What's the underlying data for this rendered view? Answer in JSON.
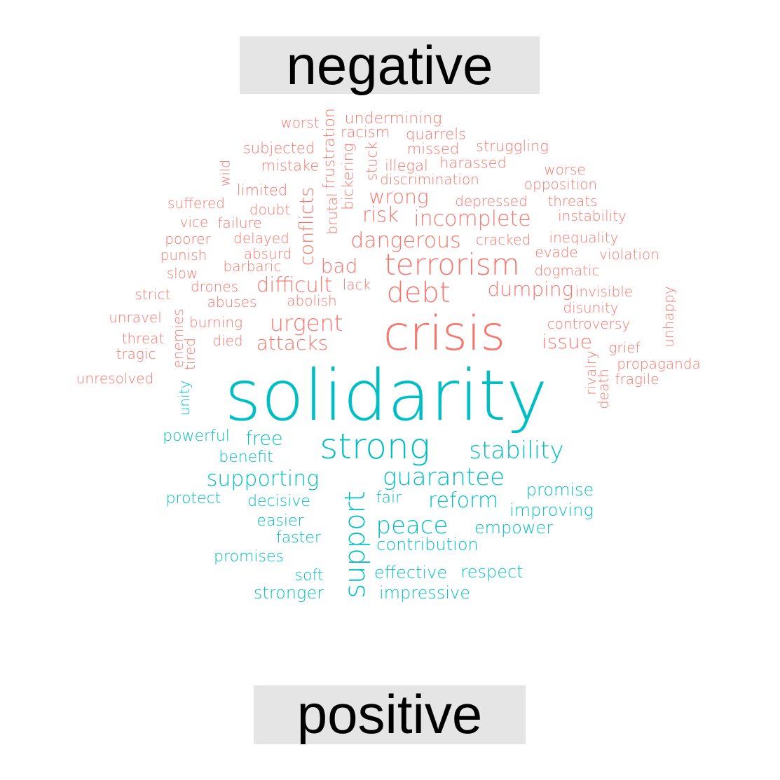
{
  "labels": {
    "negative": "negative",
    "positive": "positive"
  },
  "colors": {
    "negative": "#F8766D",
    "positive": "#00BFC4",
    "label_background": "#E5E5E5",
    "label_text": "#000000"
  },
  "words": [
    {
      "text": "worst",
      "group": "negative"
    },
    {
      "text": "undermining",
      "group": "negative"
    },
    {
      "text": "racism",
      "group": "negative"
    },
    {
      "text": "quarrels",
      "group": "negative"
    },
    {
      "text": "subjected",
      "group": "negative"
    },
    {
      "text": "missed",
      "group": "negative"
    },
    {
      "text": "struggling",
      "group": "negative"
    },
    {
      "text": "frustration",
      "group": "negative"
    },
    {
      "text": "bickering",
      "group": "negative"
    },
    {
      "text": "stuck",
      "group": "negative"
    },
    {
      "text": "mistake",
      "group": "negative"
    },
    {
      "text": "illegal",
      "group": "negative"
    },
    {
      "text": "harassed",
      "group": "negative"
    },
    {
      "text": "wild",
      "group": "negative"
    },
    {
      "text": "worse",
      "group": "negative"
    },
    {
      "text": "discrimination",
      "group": "negative"
    },
    {
      "text": "opposition",
      "group": "negative"
    },
    {
      "text": "limited",
      "group": "negative"
    },
    {
      "text": "conflicts",
      "group": "negative"
    },
    {
      "text": "brutal",
      "group": "negative"
    },
    {
      "text": "wrong",
      "group": "negative"
    },
    {
      "text": "suffered",
      "group": "negative"
    },
    {
      "text": "depressed",
      "group": "negative"
    },
    {
      "text": "threats",
      "group": "negative"
    },
    {
      "text": "doubt",
      "group": "negative"
    },
    {
      "text": "risk",
      "group": "negative"
    },
    {
      "text": "instability",
      "group": "negative"
    },
    {
      "text": "vice",
      "group": "negative"
    },
    {
      "text": "failure",
      "group": "negative"
    },
    {
      "text": "incomplete",
      "group": "negative"
    },
    {
      "text": "poorer",
      "group": "negative"
    },
    {
      "text": "delayed",
      "group": "negative"
    },
    {
      "text": "inequality",
      "group": "negative"
    },
    {
      "text": "dangerous",
      "group": "negative"
    },
    {
      "text": "cracked",
      "group": "negative"
    },
    {
      "text": "punish",
      "group": "negative"
    },
    {
      "text": "absurd",
      "group": "negative"
    },
    {
      "text": "evade",
      "group": "negative"
    },
    {
      "text": "violation",
      "group": "negative"
    },
    {
      "text": "slow",
      "group": "negative"
    },
    {
      "text": "barbaric",
      "group": "negative"
    },
    {
      "text": "bad",
      "group": "negative"
    },
    {
      "text": "terrorism",
      "group": "negative"
    },
    {
      "text": "dogmatic",
      "group": "negative"
    },
    {
      "text": "strict",
      "group": "negative"
    },
    {
      "text": "drones",
      "group": "negative"
    },
    {
      "text": "difficult",
      "group": "negative"
    },
    {
      "text": "lack",
      "group": "negative"
    },
    {
      "text": "dumping",
      "group": "negative"
    },
    {
      "text": "invisible",
      "group": "negative"
    },
    {
      "text": "unhappy",
      "group": "negative"
    },
    {
      "text": "abuses",
      "group": "negative"
    },
    {
      "text": "abolish",
      "group": "negative"
    },
    {
      "text": "debt",
      "group": "negative"
    },
    {
      "text": "disunity",
      "group": "negative"
    },
    {
      "text": "unravel",
      "group": "negative"
    },
    {
      "text": "burning",
      "group": "negative"
    },
    {
      "text": "urgent",
      "group": "negative"
    },
    {
      "text": "crisis",
      "group": "negative"
    },
    {
      "text": "controversy",
      "group": "negative"
    },
    {
      "text": "threat",
      "group": "negative"
    },
    {
      "text": "enemies",
      "group": "negative"
    },
    {
      "text": "died",
      "group": "negative"
    },
    {
      "text": "attacks",
      "group": "negative"
    },
    {
      "text": "issue",
      "group": "negative"
    },
    {
      "text": "grief",
      "group": "negative"
    },
    {
      "text": "tragic",
      "group": "negative"
    },
    {
      "text": "tired",
      "group": "negative"
    },
    {
      "text": "rivalry",
      "group": "negative"
    },
    {
      "text": "propaganda",
      "group": "negative"
    },
    {
      "text": "death",
      "group": "negative"
    },
    {
      "text": "fragile",
      "group": "negative"
    },
    {
      "text": "unresolved",
      "group": "negative"
    },
    {
      "text": "unity",
      "group": "positive"
    },
    {
      "text": "solidarity",
      "group": "positive"
    },
    {
      "text": "powerful",
      "group": "positive"
    },
    {
      "text": "free",
      "group": "positive"
    },
    {
      "text": "strong",
      "group": "positive"
    },
    {
      "text": "stability",
      "group": "positive"
    },
    {
      "text": "benefit",
      "group": "positive"
    },
    {
      "text": "supporting",
      "group": "positive"
    },
    {
      "text": "guarantee",
      "group": "positive"
    },
    {
      "text": "support",
      "group": "positive"
    },
    {
      "text": "promise",
      "group": "positive"
    },
    {
      "text": "protect",
      "group": "positive"
    },
    {
      "text": "decisive",
      "group": "positive"
    },
    {
      "text": "fair",
      "group": "positive"
    },
    {
      "text": "reform",
      "group": "positive"
    },
    {
      "text": "improving",
      "group": "positive"
    },
    {
      "text": "easier",
      "group": "positive"
    },
    {
      "text": "peace",
      "group": "positive"
    },
    {
      "text": "empower",
      "group": "positive"
    },
    {
      "text": "faster",
      "group": "positive"
    },
    {
      "text": "contribution",
      "group": "positive"
    },
    {
      "text": "promises",
      "group": "positive"
    },
    {
      "text": "soft",
      "group": "positive"
    },
    {
      "text": "effective",
      "group": "positive"
    },
    {
      "text": "respect",
      "group": "positive"
    },
    {
      "text": "stronger",
      "group": "positive"
    },
    {
      "text": "impressive",
      "group": "positive"
    }
  ]
}
